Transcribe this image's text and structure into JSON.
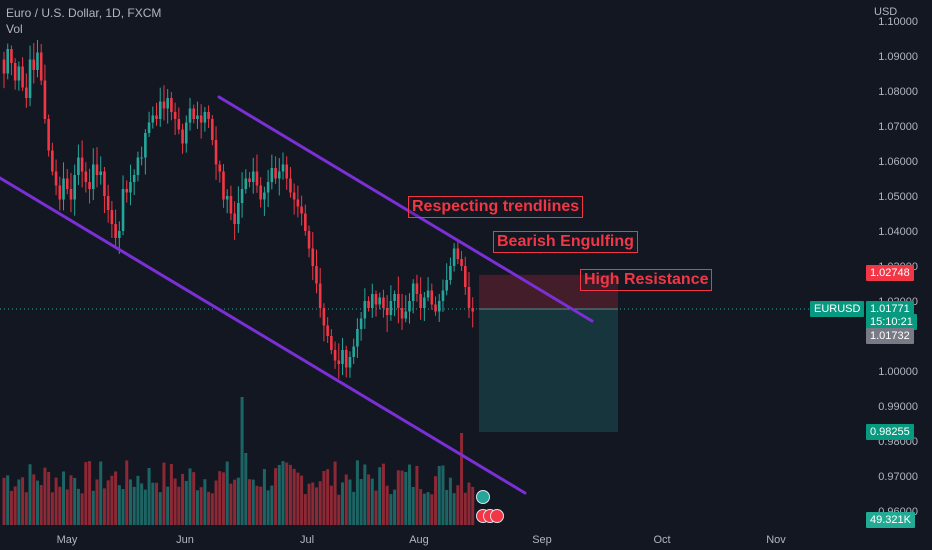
{
  "header": {
    "title": "Euro / U.S. Dollar, 1D, FXCM",
    "vol_label": "Vol"
  },
  "axis": {
    "currency": "USD",
    "y_ticks": [
      "1.10000",
      "1.09000",
      "1.08000",
      "1.07000",
      "1.06000",
      "1.05000",
      "1.04000",
      "1.03000",
      "1.02000",
      "1.00000",
      "0.99000",
      "0.98000",
      "0.97000",
      "0.96000"
    ],
    "x_ticks": [
      "May",
      "Jun",
      "Jul",
      "Aug",
      "Sep",
      "Oct",
      "Nov"
    ]
  },
  "badges": {
    "resistance_price": "1.02748",
    "symbol": "EURUSD",
    "last_price": "1.01771",
    "countdown": "15:10:21",
    "bid_price": "1.01732",
    "target_price": "0.98255",
    "volume": "49.321K"
  },
  "annotations": {
    "trendlines": "Respecting trendlines",
    "engulfing": "Bearish Engulfing",
    "resistance": "High Resistance"
  },
  "colors": {
    "up": "#26a69a",
    "down": "#f23645",
    "trendline": "#7b2fd6",
    "background": "#131722"
  },
  "chart_data": {
    "type": "candlestick",
    "symbol": "EURUSD",
    "interval": "1D",
    "x": [
      "May",
      "Jun",
      "Jul",
      "Aug",
      "Sep",
      "Oct",
      "Nov"
    ],
    "ylim": [
      0.955,
      1.105
    ],
    "y_ticks": [
      1.1,
      1.09,
      1.08,
      1.07,
      1.06,
      1.05,
      1.04,
      1.03,
      1.02,
      1.0,
      0.99,
      0.98,
      0.97,
      0.96
    ],
    "close_path": [
      1.085,
      1.092,
      1.088,
      1.083,
      1.087,
      1.081,
      1.078,
      1.089,
      1.086,
      1.091,
      1.083,
      1.072,
      1.063,
      1.057,
      1.053,
      1.049,
      1.055,
      1.052,
      1.049,
      1.056,
      1.061,
      1.057,
      1.054,
      1.052,
      1.059,
      1.056,
      1.057,
      1.05,
      1.046,
      1.042,
      1.038,
      1.04,
      1.052,
      1.051,
      1.054,
      1.056,
      1.061,
      1.061,
      1.068,
      1.071,
      1.073,
      1.072,
      1.077,
      1.075,
      1.078,
      1.074,
      1.072,
      1.069,
      1.065,
      1.071,
      1.075,
      1.072,
      1.073,
      1.071,
      1.074,
      1.072,
      1.066,
      1.059,
      1.057,
      1.049,
      1.05,
      1.045,
      1.042,
      1.048,
      1.052,
      1.055,
      1.054,
      1.057,
      1.053,
      1.049,
      1.051,
      1.054,
      1.058,
      1.055,
      1.057,
      1.059,
      1.055,
      1.051,
      1.049,
      1.047,
      1.045,
      1.04,
      1.035,
      1.03,
      1.025,
      1.018,
      1.013,
      1.01,
      1.006,
      1.003,
      1.002,
      1.006,
      1.001,
      1.004,
      1.007,
      1.012,
      1.015,
      1.02,
      1.018,
      1.022,
      1.019,
      1.021,
      1.018,
      1.016,
      1.02,
      1.022,
      1.018,
      1.015,
      1.017,
      1.02,
      1.025,
      1.022,
      1.018,
      1.021,
      1.023,
      1.019,
      1.017,
      1.02,
      1.023,
      1.026,
      1.03,
      1.035,
      1.032,
      1.03,
      1.024,
      1.018,
      1.017
    ],
    "resistance_level": 1.02748,
    "last_price": 1.01771,
    "bid_price": 1.01732,
    "target_price": 0.98255,
    "short_position": {
      "entry": 1.01771,
      "stop": 1.02748,
      "target": 0.98255
    },
    "trendlines": [
      {
        "name": "upper",
        "from": [
          1.08,
          "2022-06-10"
        ],
        "to": [
          1.019,
          "2022-09-20"
        ]
      },
      {
        "name": "lower",
        "from": [
          1.057,
          "2022-04-20"
        ],
        "to": [
          0.966,
          "2022-09-05"
        ]
      }
    ],
    "volume_last": "49.321K",
    "grid": false
  }
}
